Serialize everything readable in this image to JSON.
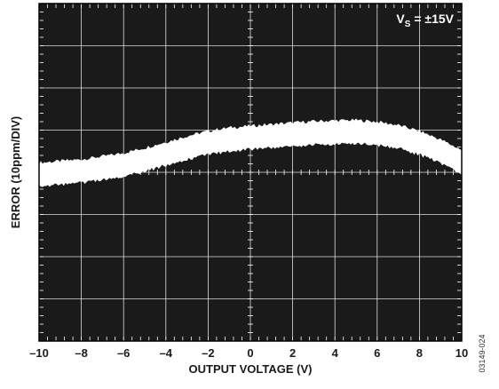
{
  "chart_data": {
    "type": "line",
    "xlabel": "OUTPUT VOLTAGE (V)",
    "ylabel": "ERROR (10ppm/DIV)",
    "xlim": [
      -10,
      10
    ],
    "ylim": [
      -40,
      40
    ],
    "x_ticks": [
      "–10",
      "–8",
      "–6",
      "–4",
      "–2",
      "0",
      "2",
      "4",
      "6",
      "8",
      "10"
    ],
    "grid": true,
    "background_color": "#1a1a1a",
    "trace_color": "#ffffff",
    "grid_color": "#ffffff",
    "annotation": {
      "main": "V",
      "sub": "S",
      "rest": " = ±15V"
    },
    "figure_id": "03149-024",
    "series": [
      {
        "x": [
          -10,
          -9,
          -8,
          -7,
          -6,
          -5,
          -4,
          -3,
          -2,
          -1,
          0,
          1,
          2,
          3,
          4,
          5,
          6,
          7,
          8,
          9,
          10
        ],
        "y": [
          -0.5,
          -0.1,
          0.3,
          1.0,
          1.8,
          3.0,
          4.4,
          5.8,
          7.0,
          7.8,
          8.2,
          8.6,
          9.0,
          9.3,
          9.5,
          9.6,
          9.2,
          8.4,
          7.0,
          5.0,
          2.5
        ],
        "band_width": 2.3
      }
    ]
  }
}
